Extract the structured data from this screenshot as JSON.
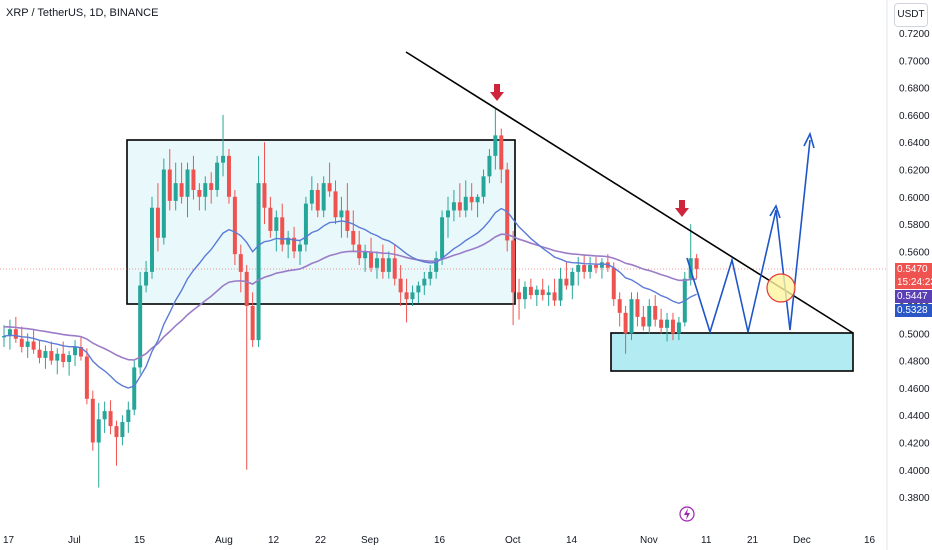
{
  "header": {
    "symbol": "XRP / TetherUS, 1D, BINANCE"
  },
  "currency_button": "USDT",
  "price_labels": {
    "last": "0.5470",
    "countdown": "15:24:23",
    "ema_fast": "0.5447",
    "ema_slow": "0.5328"
  },
  "colors": {
    "up": "#26a69a",
    "down": "#ef5350",
    "ema_fast": "#5b7bd6",
    "ema_slow": "#9b7cc9",
    "range_box": "#e0f7fa",
    "target_box": "#b2ebf2",
    "projection": "#1e56c9",
    "trendline": "#000000",
    "signal_arrow": "#d0243b"
  },
  "chart_data": {
    "type": "candlestick",
    "title": "XRP / TetherUS, 1D, BINANCE",
    "ylim": [
      0.37,
      0.73
    ],
    "y_ticks": [
      "0.7200",
      "0.7000",
      "0.6800",
      "0.6600",
      "0.6400",
      "0.6200",
      "0.6000",
      "0.5800",
      "0.5600",
      "0.5400",
      "0.5200",
      "0.5000",
      "0.4800",
      "0.4600",
      "0.4400",
      "0.4200",
      "0.4000",
      "0.3800"
    ],
    "x_ticks": [
      "17",
      "Jul",
      "15",
      "Aug",
      "12",
      "22",
      "Sep",
      "16",
      "Oct",
      "14",
      "Nov",
      "11",
      "21",
      "Dec",
      "16"
    ],
    "grid": false,
    "candles_ohlc": [
      [
        0.497,
        0.506,
        0.49,
        0.498
      ],
      [
        0.498,
        0.51,
        0.488,
        0.503
      ],
      [
        0.503,
        0.512,
        0.493,
        0.496
      ],
      [
        0.496,
        0.505,
        0.486,
        0.49
      ],
      [
        0.49,
        0.5,
        0.482,
        0.494
      ],
      [
        0.494,
        0.503,
        0.485,
        0.488
      ],
      [
        0.488,
        0.495,
        0.478,
        0.482
      ],
      [
        0.482,
        0.491,
        0.474,
        0.487
      ],
      [
        0.487,
        0.494,
        0.477,
        0.48
      ],
      [
        0.48,
        0.489,
        0.47,
        0.485
      ],
      [
        0.485,
        0.494,
        0.475,
        0.479
      ],
      [
        0.479,
        0.487,
        0.469,
        0.484
      ],
      [
        0.484,
        0.495,
        0.476,
        0.49
      ],
      [
        0.49,
        0.497,
        0.48,
        0.483
      ],
      [
        0.483,
        0.489,
        0.448,
        0.452
      ],
      [
        0.452,
        0.458,
        0.414,
        0.42
      ],
      [
        0.42,
        0.449,
        0.387,
        0.437
      ],
      [
        0.437,
        0.45,
        0.427,
        0.443
      ],
      [
        0.443,
        0.451,
        0.426,
        0.432
      ],
      [
        0.432,
        0.436,
        0.403,
        0.424
      ],
      [
        0.424,
        0.44,
        0.418,
        0.435
      ],
      [
        0.435,
        0.45,
        0.427,
        0.444
      ],
      [
        0.444,
        0.48,
        0.44,
        0.475
      ],
      [
        0.475,
        0.545,
        0.47,
        0.535
      ],
      [
        0.535,
        0.553,
        0.53,
        0.545
      ],
      [
        0.545,
        0.6,
        0.54,
        0.592
      ],
      [
        0.592,
        0.61,
        0.56,
        0.57
      ],
      [
        0.57,
        0.628,
        0.565,
        0.62
      ],
      [
        0.62,
        0.635,
        0.59,
        0.597
      ],
      [
        0.597,
        0.625,
        0.59,
        0.61
      ],
      [
        0.61,
        0.625,
        0.595,
        0.6
      ],
      [
        0.6,
        0.625,
        0.585,
        0.62
      ],
      [
        0.62,
        0.63,
        0.598,
        0.605
      ],
      [
        0.605,
        0.61,
        0.59,
        0.6
      ],
      [
        0.6,
        0.615,
        0.59,
        0.61
      ],
      [
        0.61,
        0.618,
        0.595,
        0.605
      ],
      [
        0.605,
        0.63,
        0.6,
        0.625
      ],
      [
        0.625,
        0.66,
        0.615,
        0.63
      ],
      [
        0.63,
        0.635,
        0.595,
        0.6
      ],
      [
        0.6,
        0.605,
        0.55,
        0.558
      ],
      [
        0.558,
        0.565,
        0.53,
        0.545
      ],
      [
        0.545,
        0.55,
        0.4,
        0.52
      ],
      [
        0.52,
        0.53,
        0.49,
        0.495
      ],
      [
        0.495,
        0.63,
        0.49,
        0.61
      ],
      [
        0.61,
        0.64,
        0.58,
        0.592
      ],
      [
        0.592,
        0.6,
        0.57,
        0.575
      ],
      [
        0.575,
        0.59,
        0.56,
        0.585
      ],
      [
        0.585,
        0.595,
        0.56,
        0.565
      ],
      [
        0.565,
        0.575,
        0.555,
        0.57
      ],
      [
        0.57,
        0.578,
        0.555,
        0.56
      ],
      [
        0.56,
        0.568,
        0.55,
        0.565
      ],
      [
        0.565,
        0.6,
        0.56,
        0.595
      ],
      [
        0.595,
        0.615,
        0.59,
        0.605
      ],
      [
        0.605,
        0.61,
        0.585,
        0.59
      ],
      [
        0.59,
        0.615,
        0.585,
        0.61
      ],
      [
        0.61,
        0.625,
        0.6,
        0.604
      ],
      [
        0.604,
        0.612,
        0.58,
        0.585
      ],
      [
        0.585,
        0.6,
        0.57,
        0.59
      ],
      [
        0.59,
        0.61,
        0.57,
        0.575
      ],
      [
        0.575,
        0.59,
        0.56,
        0.565
      ],
      [
        0.565,
        0.575,
        0.55,
        0.555
      ],
      [
        0.555,
        0.565,
        0.545,
        0.56
      ],
      [
        0.56,
        0.57,
        0.545,
        0.548
      ],
      [
        0.548,
        0.56,
        0.54,
        0.555
      ],
      [
        0.555,
        0.565,
        0.54,
        0.545
      ],
      [
        0.545,
        0.56,
        0.54,
        0.555
      ],
      [
        0.555,
        0.565,
        0.535,
        0.54
      ],
      [
        0.54,
        0.55,
        0.52,
        0.53
      ],
      [
        0.53,
        0.54,
        0.508,
        0.525
      ],
      [
        0.525,
        0.535,
        0.52,
        0.53
      ],
      [
        0.53,
        0.538,
        0.522,
        0.535
      ],
      [
        0.535,
        0.545,
        0.528,
        0.54
      ],
      [
        0.54,
        0.55,
        0.535,
        0.545
      ],
      [
        0.545,
        0.56,
        0.54,
        0.555
      ],
      [
        0.555,
        0.59,
        0.55,
        0.585
      ],
      [
        0.585,
        0.6,
        0.57,
        0.59
      ],
      [
        0.59,
        0.605,
        0.582,
        0.596
      ],
      [
        0.596,
        0.61,
        0.585,
        0.59
      ],
      [
        0.59,
        0.612,
        0.585,
        0.6
      ],
      [
        0.6,
        0.61,
        0.59,
        0.596
      ],
      [
        0.596,
        0.602,
        0.585,
        0.6
      ],
      [
        0.6,
        0.62,
        0.595,
        0.615
      ],
      [
        0.615,
        0.635,
        0.61,
        0.63
      ],
      [
        0.63,
        0.665,
        0.62,
        0.645
      ],
      [
        0.645,
        0.65,
        0.61,
        0.62
      ],
      [
        0.62,
        0.625,
        0.56,
        0.568
      ],
      [
        0.568,
        0.575,
        0.506,
        0.53
      ],
      [
        0.53,
        0.54,
        0.51,
        0.525
      ],
      [
        0.525,
        0.538,
        0.518,
        0.534
      ],
      [
        0.534,
        0.54,
        0.525,
        0.528
      ],
      [
        0.528,
        0.535,
        0.52,
        0.532
      ],
      [
        0.532,
        0.54,
        0.524,
        0.528
      ],
      [
        0.528,
        0.535,
        0.52,
        0.53
      ],
      [
        0.53,
        0.54,
        0.52,
        0.524
      ],
      [
        0.524,
        0.548,
        0.52,
        0.54
      ],
      [
        0.54,
        0.552,
        0.532,
        0.535
      ],
      [
        0.535,
        0.548,
        0.525,
        0.545
      ],
      [
        0.545,
        0.556,
        0.535,
        0.55
      ],
      [
        0.55,
        0.558,
        0.54,
        0.545
      ],
      [
        0.545,
        0.556,
        0.54,
        0.55
      ],
      [
        0.55,
        0.556,
        0.544,
        0.548
      ],
      [
        0.548,
        0.555,
        0.54,
        0.552
      ],
      [
        0.552,
        0.558,
        0.545,
        0.548
      ],
      [
        0.548,
        0.552,
        0.52,
        0.525
      ],
      [
        0.525,
        0.53,
        0.505,
        0.515
      ],
      [
        0.515,
        0.52,
        0.485,
        0.5
      ],
      [
        0.5,
        0.53,
        0.495,
        0.525
      ],
      [
        0.525,
        0.53,
        0.505,
        0.512
      ],
      [
        0.512,
        0.52,
        0.502,
        0.505
      ],
      [
        0.505,
        0.525,
        0.5,
        0.52
      ],
      [
        0.52,
        0.528,
        0.505,
        0.51
      ],
      [
        0.51,
        0.518,
        0.5,
        0.504
      ],
      [
        0.504,
        0.515,
        0.494,
        0.51
      ],
      [
        0.51,
        0.515,
        0.495,
        0.5
      ],
      [
        0.5,
        0.512,
        0.495,
        0.508
      ],
      [
        0.508,
        0.545,
        0.505,
        0.54
      ],
      [
        0.54,
        0.58,
        0.535,
        0.555
      ],
      [
        0.555,
        0.558,
        0.54,
        0.547
      ]
    ],
    "series": [
      {
        "name": "",
        "type": "line",
        "role": "ema_fast",
        "color": "#5b7bd6"
      },
      {
        "name": "",
        "type": "line",
        "role": "ema_slow",
        "color": "#9b7cc9"
      }
    ],
    "annotations": {
      "range_box": {
        "y_top": 0.643,
        "y_bottom": 0.535
      },
      "target_box": {
        "y_top": 0.501,
        "y_bottom": 0.473
      },
      "trendline": {
        "y_start": 0.7,
        "y_end": 0.502
      },
      "zigzag_projection": [
        0.555,
        0.502,
        0.555,
        0.502,
        0.6,
        0.502,
        0.646
      ],
      "signal_arrows": 2,
      "circle_marker_price": 0.54,
      "horizontal_price_line": 0.547
    }
  }
}
